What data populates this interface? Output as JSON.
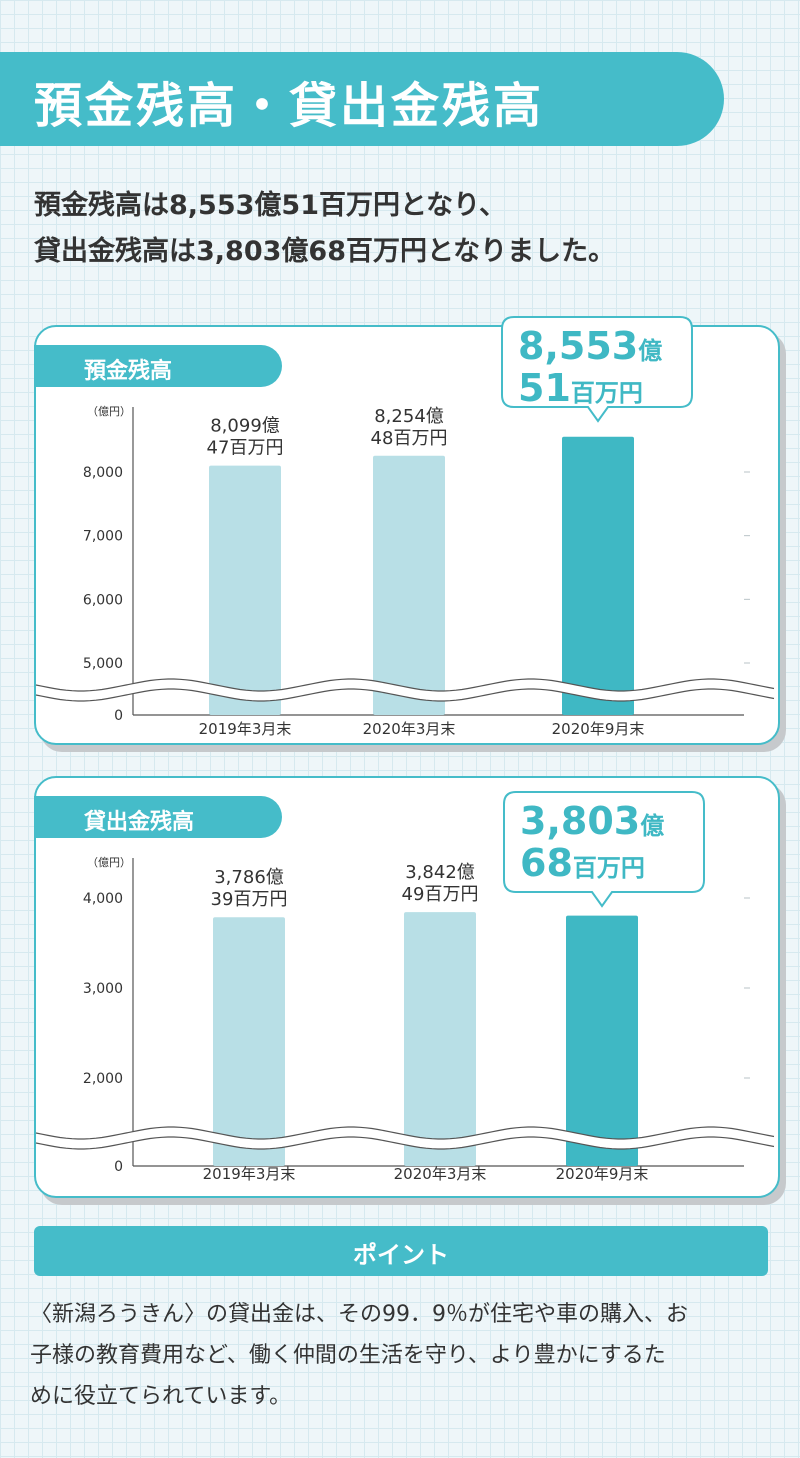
{
  "header": {
    "title": "預金残高・貸出金残高",
    "lead_line1": "預金残高は8,553億51百万円となり、",
    "lead_line2": "貸出金残高は3,803億68百万円となりました。"
  },
  "colors": {
    "accent": "#45bcc9",
    "bar_light": "#b8dfe6",
    "bar_dark": "#3fb8c4",
    "highlight_text": "#3fb8c4"
  },
  "chart_data": [
    {
      "type": "bar",
      "title": "預金残高",
      "unit_label": "（億円）",
      "categories": [
        "2019年3月末",
        "2020年3月末",
        "2020年9月末"
      ],
      "values": [
        8099.47,
        8254.48,
        8553.51
      ],
      "value_labels": [
        [
          "8,099億",
          "47百万円"
        ],
        [
          "8,254億",
          "48百万円"
        ],
        [
          "8,553億",
          "51百万円"
        ]
      ],
      "highlight_index": 2,
      "y_ticks": [
        "0",
        "5,000",
        "6,000",
        "7,000",
        "8,000"
      ],
      "axis_break": true,
      "callout": {
        "big1": "8,553",
        "small1": "億",
        "big2": "51",
        "small2": "百万円"
      }
    },
    {
      "type": "bar",
      "title": "貸出金残高",
      "unit_label": "（億円）",
      "categories": [
        "2019年3月末",
        "2020年3月末",
        "2020年9月末"
      ],
      "values": [
        3786.39,
        3842.49,
        3803.68
      ],
      "value_labels": [
        [
          "3,786億",
          "39百万円"
        ],
        [
          "3,842億",
          "49百万円"
        ],
        [
          "3,803億",
          "68百万円"
        ]
      ],
      "highlight_index": 2,
      "y_ticks": [
        "0",
        "2,000",
        "3,000",
        "4,000"
      ],
      "axis_break": true,
      "callout": {
        "big1": "3,803",
        "small1": "億",
        "big2": "68",
        "small2": "百万円"
      }
    }
  ],
  "point": {
    "heading": "ポイント",
    "lines": [
      "〈新潟ろうきん〉の貸出金は、その99．9％が住宅や車の購入、お",
      "子様の教育費用など、働く仲間の生活を守り、より豊かにするた",
      "めに役立てられています。"
    ]
  }
}
